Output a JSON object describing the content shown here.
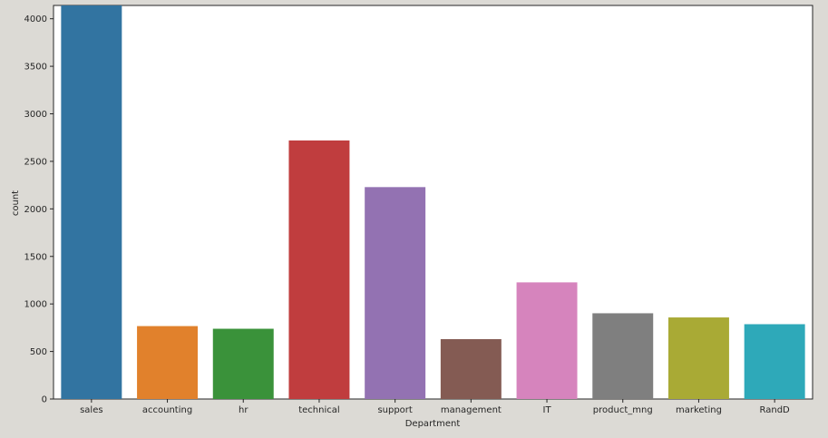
{
  "chart_data": {
    "type": "bar",
    "title": "",
    "xlabel": "Department",
    "ylabel": "count",
    "categories": [
      "sales",
      "accounting",
      "hr",
      "technical",
      "support",
      "management",
      "IT",
      "product_mng",
      "marketing",
      "RandD"
    ],
    "values": [
      4140,
      767,
      739,
      2720,
      2229,
      630,
      1227,
      902,
      858,
      787
    ],
    "ylim": [
      0,
      4140
    ],
    "yticks": [
      0,
      500,
      1000,
      1500,
      2000,
      2500,
      3000,
      3500,
      4000
    ],
    "grid": false,
    "colors": [
      "#3274a1",
      "#e1812c",
      "#3a923a",
      "#c03d3e",
      "#9372b2",
      "#845b53",
      "#d684bd",
      "#7f7f7f",
      "#a9aa35",
      "#2ea9b9"
    ]
  },
  "colors": {
    "figure_background": "#dcdad5",
    "plot_background": "#ffffff",
    "axis_color": "#262626"
  }
}
